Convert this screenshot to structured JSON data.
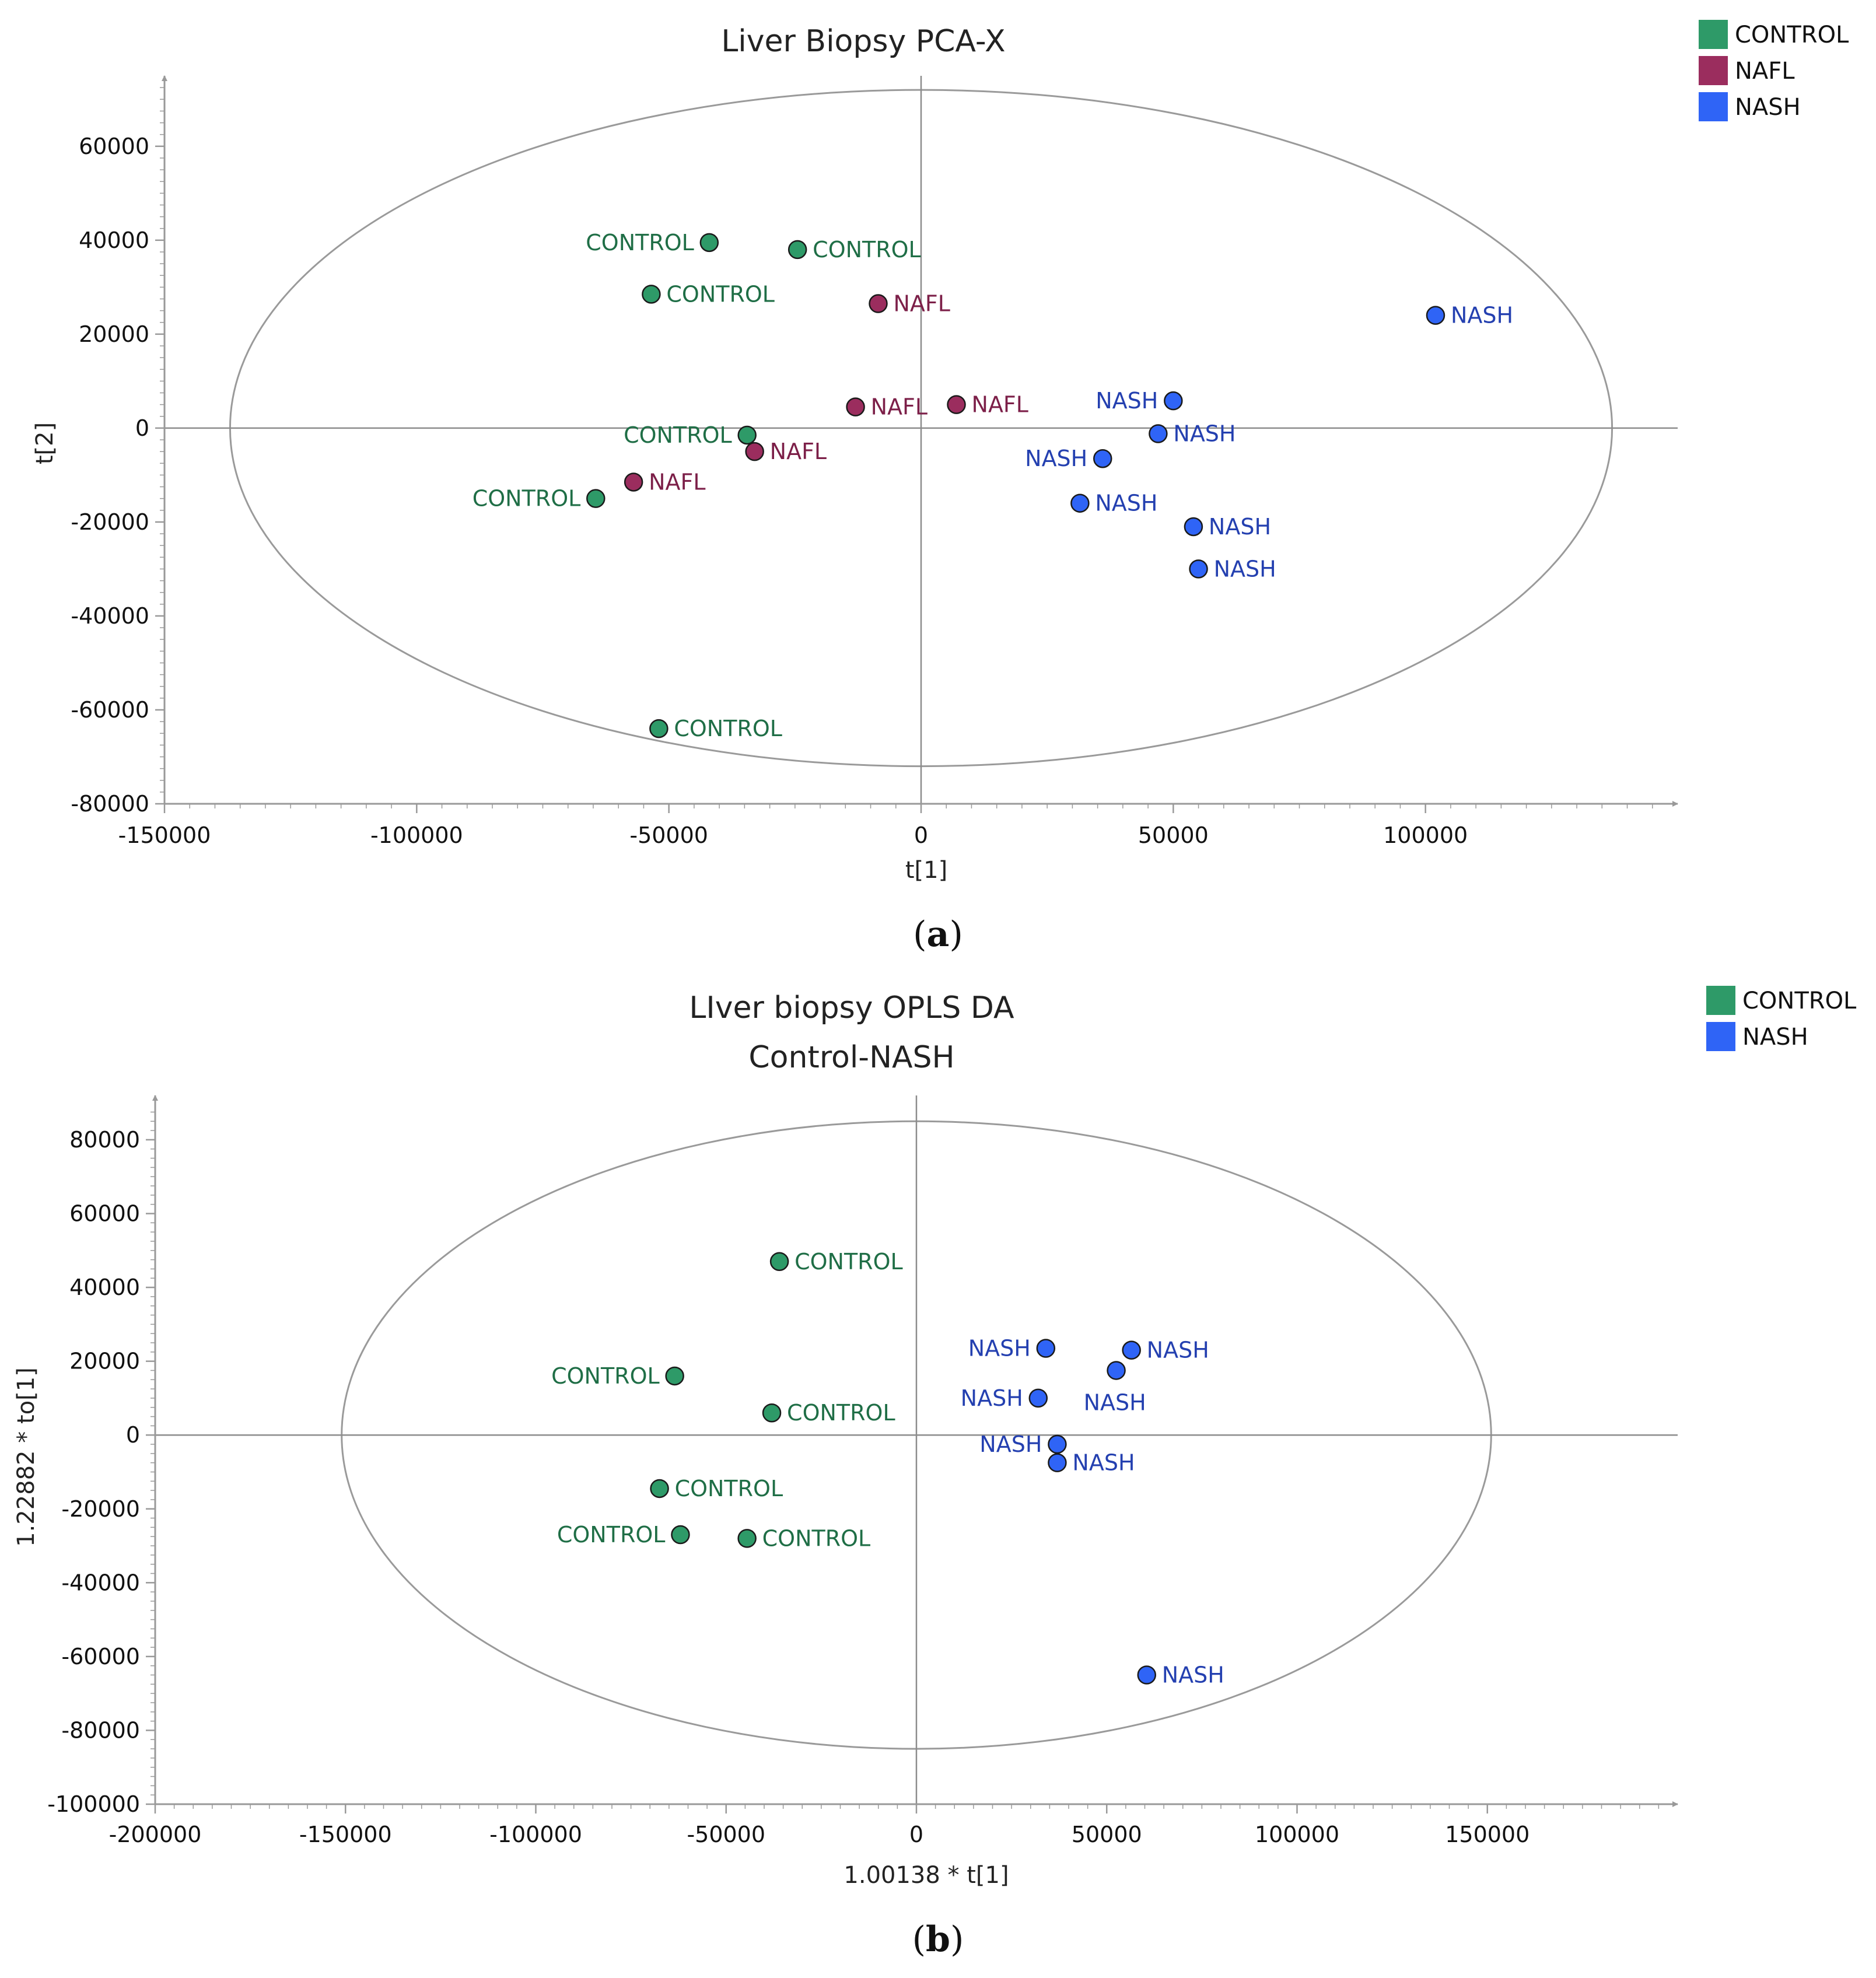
{
  "chart_data": [
    {
      "type": "scatter",
      "panel": "(a)",
      "caption_open": "(",
      "caption_letter": "a",
      "caption_close": ")",
      "title": [
        "Liver Biopsy PCA-X"
      ],
      "xlabel": "t[1]",
      "ylabel": "t[2]",
      "xlim": [
        -150000,
        150000
      ],
      "ylim": [
        -80000,
        75000
      ],
      "xticks": [
        -150000,
        -100000,
        -50000,
        0,
        50000,
        100000
      ],
      "yticks": [
        -80000,
        -60000,
        -40000,
        -20000,
        0,
        20000,
        40000,
        60000
      ],
      "x_tick_labels": [
        "-150000",
        "-100000",
        "-50000",
        "0",
        "50000",
        "100000"
      ],
      "y_tick_labels": [
        "-80000",
        "-60000",
        "-40000",
        "-20000",
        "0",
        "20000",
        "40000",
        "60000"
      ],
      "ellipse": {
        "rx": 137000,
        "ry": 72000
      },
      "grid": false,
      "legend": [
        {
          "name": "CONTROL",
          "color": "#2e9a68"
        },
        {
          "name": "NAFL",
          "color": "#9b2d5e"
        },
        {
          "name": "NASH",
          "color": "#2f64f6"
        }
      ],
      "series": [
        {
          "name": "CONTROL",
          "marker_color": "#2e9a68",
          "label_color": "#1f6e46",
          "points": [
            {
              "x": -42000,
              "y": 39500,
              "label": "CONTROL",
              "side": "left"
            },
            {
              "x": -24500,
              "y": 38000,
              "label": "CONTROL",
              "side": "right"
            },
            {
              "x": -53500,
              "y": 28500,
              "label": "CONTROL",
              "side": "right"
            },
            {
              "x": -34500,
              "y": -1500,
              "label": "CONTROL",
              "side": "left"
            },
            {
              "x": -64500,
              "y": -15000,
              "label": "CONTROL",
              "side": "left"
            },
            {
              "x": -52000,
              "y": -64000,
              "label": "CONTROL",
              "side": "right"
            }
          ]
        },
        {
          "name": "NAFL",
          "marker_color": "#9b2d5e",
          "label_color": "#7c1f48",
          "points": [
            {
              "x": -8500,
              "y": 26500,
              "label": "NAFL",
              "side": "right"
            },
            {
              "x": -13000,
              "y": 4500,
              "label": "NAFL",
              "side": "right"
            },
            {
              "x": 7000,
              "y": 5000,
              "label": "NAFL",
              "side": "right"
            },
            {
              "x": -33000,
              "y": -5000,
              "label": "NAFL",
              "side": "right"
            },
            {
              "x": -57000,
              "y": -11500,
              "label": "NAFL",
              "side": "right"
            }
          ]
        },
        {
          "name": "NASH",
          "marker_color": "#2f64f6",
          "label_color": "#2440b0",
          "points": [
            {
              "x": 102000,
              "y": 24000,
              "label": "NASH",
              "side": "right"
            },
            {
              "x": 50000,
              "y": 5800,
              "label": "NASH",
              "side": "left"
            },
            {
              "x": 47000,
              "y": -1200,
              "label": "NASH",
              "side": "right"
            },
            {
              "x": 36000,
              "y": -6500,
              "label": "NASH",
              "side": "left"
            },
            {
              "x": 31500,
              "y": -16000,
              "label": "NASH",
              "side": "right"
            },
            {
              "x": 54000,
              "y": -21000,
              "label": "NASH",
              "side": "right"
            },
            {
              "x": 55000,
              "y": -30000,
              "label": "NASH",
              "side": "right"
            }
          ]
        }
      ]
    },
    {
      "type": "scatter",
      "panel": "(b)",
      "caption_open": "(",
      "caption_letter": "b",
      "caption_close": ")",
      "title": [
        "LIver biopsy OPLS DA",
        "Control-NASH"
      ],
      "xlabel": "1.00138 * t[1]",
      "ylabel": "1.22882 * to[1]",
      "xlim": [
        -200000,
        200000
      ],
      "ylim": [
        -100000,
        92000
      ],
      "xticks": [
        -200000,
        -150000,
        -100000,
        -50000,
        0,
        50000,
        100000,
        150000
      ],
      "yticks": [
        -100000,
        -80000,
        -60000,
        -40000,
        -20000,
        0,
        20000,
        40000,
        60000,
        80000
      ],
      "x_tick_labels": [
        "-200000",
        "-150000",
        "-100000",
        "-50000",
        "0",
        "50000",
        "100000",
        "150000"
      ],
      "y_tick_labels": [
        "-100000",
        "-80000",
        "-60000",
        "-40000",
        "-20000",
        "0",
        "20000",
        "40000",
        "60000",
        "80000"
      ],
      "ellipse": {
        "rx": 151000,
        "ry": 85000
      },
      "grid": false,
      "legend": [
        {
          "name": "CONTROL",
          "color": "#2e9a68"
        },
        {
          "name": "NASH",
          "color": "#2f64f6"
        }
      ],
      "series": [
        {
          "name": "CONTROL",
          "marker_color": "#2e9a68",
          "label_color": "#1f6e46",
          "points": [
            {
              "x": -36000,
              "y": 47000,
              "label": "CONTROL",
              "side": "right"
            },
            {
              "x": -63500,
              "y": 16000,
              "label": "CONTROL",
              "side": "left"
            },
            {
              "x": -38000,
              "y": 6000,
              "label": "CONTROL",
              "side": "right"
            },
            {
              "x": -67500,
              "y": -14500,
              "label": "CONTROL",
              "side": "right"
            },
            {
              "x": -62000,
              "y": -27000,
              "label": "CONTROL",
              "side": "left"
            },
            {
              "x": -44500,
              "y": -28000,
              "label": "CONTROL",
              "side": "right"
            }
          ]
        },
        {
          "name": "NASH",
          "marker_color": "#2f64f6",
          "label_color": "#2440b0",
          "points": [
            {
              "x": 34000,
              "y": 23500,
              "label": "NASH",
              "side": "left"
            },
            {
              "x": 56500,
              "y": 23000,
              "label": "NASH",
              "side": "right"
            },
            {
              "x": 52500,
              "y": 17500,
              "label": "NASH",
              "side": "below"
            },
            {
              "x": 32000,
              "y": 10000,
              "label": "NASH",
              "side": "left"
            },
            {
              "x": 37000,
              "y": -2500,
              "label": "NASH",
              "side": "left"
            },
            {
              "x": 37000,
              "y": -7500,
              "label": "NASH",
              "side": "right"
            },
            {
              "x": 60500,
              "y": -65000,
              "label": "NASH",
              "side": "right"
            }
          ]
        }
      ]
    }
  ]
}
